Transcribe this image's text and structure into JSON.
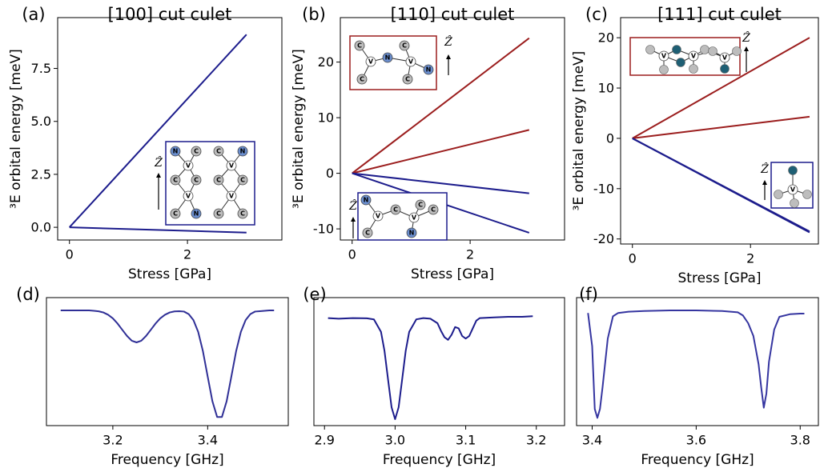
{
  "chart_data": [
    {
      "type": "line",
      "panel_label": "(a)",
      "title": "[100] cut culet",
      "xlabel": "Stress [GPa]",
      "ylabel": "³E orbital energy [meV]",
      "x": [
        0,
        3
      ],
      "series": [
        {
          "color": "#1c1c8c",
          "values": [
            0,
            9.1
          ]
        },
        {
          "color": "#1c1c8c",
          "values": [
            0,
            -0.25
          ]
        }
      ],
      "xlim": [
        -0.2,
        3.6
      ],
      "xticks": [
        0,
        2
      ],
      "ylim": [
        -0.6,
        9.9
      ],
      "yticks": [
        {
          "value": 0,
          "label": "0.0"
        },
        2.5,
        {
          "value": 5,
          "label": "5.0"
        },
        7.5
      ],
      "insets": [
        {
          "axis_label": "Ẑ",
          "atoms": [
            "N",
            "C",
            "C",
            "N",
            "V",
            "V",
            "C",
            "C",
            "C",
            "C",
            "V",
            "V",
            "C",
            "N",
            "C",
            "C"
          ]
        }
      ]
    },
    {
      "type": "line",
      "panel_label": "(b)",
      "title": "[110] cut culet",
      "xlabel": "Stress [GPa]",
      "ylabel": "³E orbital energy [meV]",
      "x": [
        0,
        3
      ],
      "series": [
        {
          "color": "#9b1d1d",
          "values": [
            0,
            24.3
          ]
        },
        {
          "color": "#9b1d1d",
          "values": [
            0,
            7.8
          ]
        },
        {
          "color": "#1c1c8c",
          "values": [
            0,
            -3.6
          ]
        },
        {
          "color": "#1c1c8c",
          "values": [
            0,
            -10.7
          ]
        }
      ],
      "xlim": [
        -0.2,
        3.6
      ],
      "xticks": [
        0,
        2
      ],
      "ylim": [
        -12,
        28
      ],
      "yticks": [
        -10,
        0,
        10,
        20
      ],
      "insets": [
        {
          "axis_label": "Ẑ",
          "atoms": [
            "C",
            "V",
            "N",
            "C",
            "C",
            "V",
            "C",
            "N"
          ]
        },
        {
          "axis_label": "Ẑ",
          "atoms": [
            "N",
            "V",
            "C",
            "C",
            "C",
            "V",
            "C",
            "N"
          ]
        }
      ]
    },
    {
      "type": "line",
      "panel_label": "(c)",
      "title": "[111] cut culet",
      "xlabel": "Stress [GPa]",
      "ylabel": "³E orbital energy [meV]",
      "x": [
        0,
        3
      ],
      "series": [
        {
          "color": "#9b1d1d",
          "values": [
            0,
            20
          ]
        },
        {
          "color": "#9b1d1d",
          "values": [
            0,
            4.3
          ]
        },
        {
          "color": "#1c1c8c",
          "values": [
            0,
            -18.7
          ]
        },
        {
          "color": "#1c1c8c",
          "values": [
            0,
            -18.5
          ]
        }
      ],
      "xlim": [
        -0.2,
        3.15
      ],
      "xticks": [
        0,
        2
      ],
      "ylim": [
        -21,
        24
      ],
      "yticks": [
        -20,
        -10,
        0,
        10,
        20
      ],
      "insets": [
        {
          "axis_label": "Ẑ",
          "atoms": [
            "V",
            "V",
            "V"
          ]
        },
        {
          "axis_label": "Ẑ",
          "atoms": [
            "V"
          ]
        }
      ]
    },
    {
      "type": "line",
      "panel_label": "(d)",
      "xlabel": "Frequency [GHz]",
      "x": [
        3.09,
        3.1,
        3.11,
        3.12,
        3.13,
        3.14,
        3.15,
        3.16,
        3.17,
        3.18,
        3.19,
        3.2,
        3.21,
        3.22,
        3.23,
        3.24,
        3.25,
        3.26,
        3.27,
        3.28,
        3.29,
        3.3,
        3.31,
        3.32,
        3.33,
        3.34,
        3.35,
        3.36,
        3.37,
        3.38,
        3.39,
        3.4,
        3.41,
        3.42,
        3.43,
        3.44,
        3.45,
        3.46,
        3.47,
        3.48,
        3.49,
        3.5,
        3.51,
        3.52,
        3.53,
        3.54
      ],
      "series": [
        {
          "color": "#2f2f96",
          "values": [
            0.9,
            0.9,
            0.9,
            0.9,
            0.9,
            0.9,
            0.9,
            0.897,
            0.893,
            0.884,
            0.866,
            0.838,
            0.797,
            0.748,
            0.7,
            0.663,
            0.65,
            0.663,
            0.7,
            0.748,
            0.797,
            0.838,
            0.866,
            0.884,
            0.892,
            0.894,
            0.891,
            0.871,
            0.824,
            0.732,
            0.581,
            0.384,
            0.19,
            0.067,
            0.067,
            0.19,
            0.384,
            0.581,
            0.732,
            0.824,
            0.871,
            0.891,
            0.894,
            0.897,
            0.9,
            0.9
          ]
        }
      ],
      "xlim": [
        3.06,
        3.57
      ],
      "xticks": [
        3.2,
        3.4
      ],
      "ylim": [
        0,
        1
      ]
    },
    {
      "type": "line",
      "panel_label": "(e)",
      "xlabel": "Frequency [GHz]",
      "x": [
        2.905,
        2.92,
        2.94,
        2.96,
        2.97,
        2.98,
        2.985,
        2.99,
        2.995,
        3.0,
        3.005,
        3.01,
        3.015,
        3.02,
        3.03,
        3.04,
        3.05,
        3.06,
        3.065,
        3.07,
        3.075,
        3.08,
        3.085,
        3.09,
        3.095,
        3.1,
        3.105,
        3.11,
        3.115,
        3.12,
        3.14,
        3.16,
        3.18,
        3.195
      ],
      "series": [
        {
          "color": "#1c1c8c",
          "values": [
            0.84,
            0.835,
            0.84,
            0.838,
            0.83,
            0.733,
            0.583,
            0.361,
            0.143,
            0.05,
            0.143,
            0.361,
            0.583,
            0.733,
            0.83,
            0.84,
            0.835,
            0.8,
            0.74,
            0.69,
            0.67,
            0.71,
            0.77,
            0.76,
            0.7,
            0.68,
            0.7,
            0.76,
            0.82,
            0.84,
            0.845,
            0.85,
            0.85,
            0.855
          ]
        }
      ],
      "xlim": [
        2.885,
        3.24
      ],
      "xticks": [
        2.9,
        {
          "value": 3,
          "label": "3.0"
        },
        3.1,
        3.2
      ],
      "ylim": [
        0,
        1
      ]
    },
    {
      "type": "line",
      "panel_label": "(f)",
      "xlabel": "Frequency [GHz]",
      "x": [
        3.392,
        3.4,
        3.405,
        3.41,
        3.415,
        3.42,
        3.43,
        3.44,
        3.45,
        3.47,
        3.5,
        3.55,
        3.6,
        3.65,
        3.68,
        3.69,
        3.7,
        3.71,
        3.72,
        3.725,
        3.73,
        3.735,
        3.74,
        3.75,
        3.76,
        3.78,
        3.8,
        3.808
      ],
      "series": [
        {
          "color": "#3535a0",
          "values": [
            0.88,
            0.62,
            0.13,
            0.06,
            0.13,
            0.3,
            0.68,
            0.854,
            0.88,
            0.89,
            0.895,
            0.9,
            0.9,
            0.895,
            0.885,
            0.86,
            0.8,
            0.7,
            0.48,
            0.3,
            0.14,
            0.25,
            0.5,
            0.75,
            0.85,
            0.87,
            0.875,
            0.875
          ]
        }
      ],
      "xlim": [
        3.37,
        3.835
      ],
      "xticks": [
        3.4,
        3.6,
        3.8
      ],
      "ylim": [
        0,
        1
      ]
    }
  ]
}
